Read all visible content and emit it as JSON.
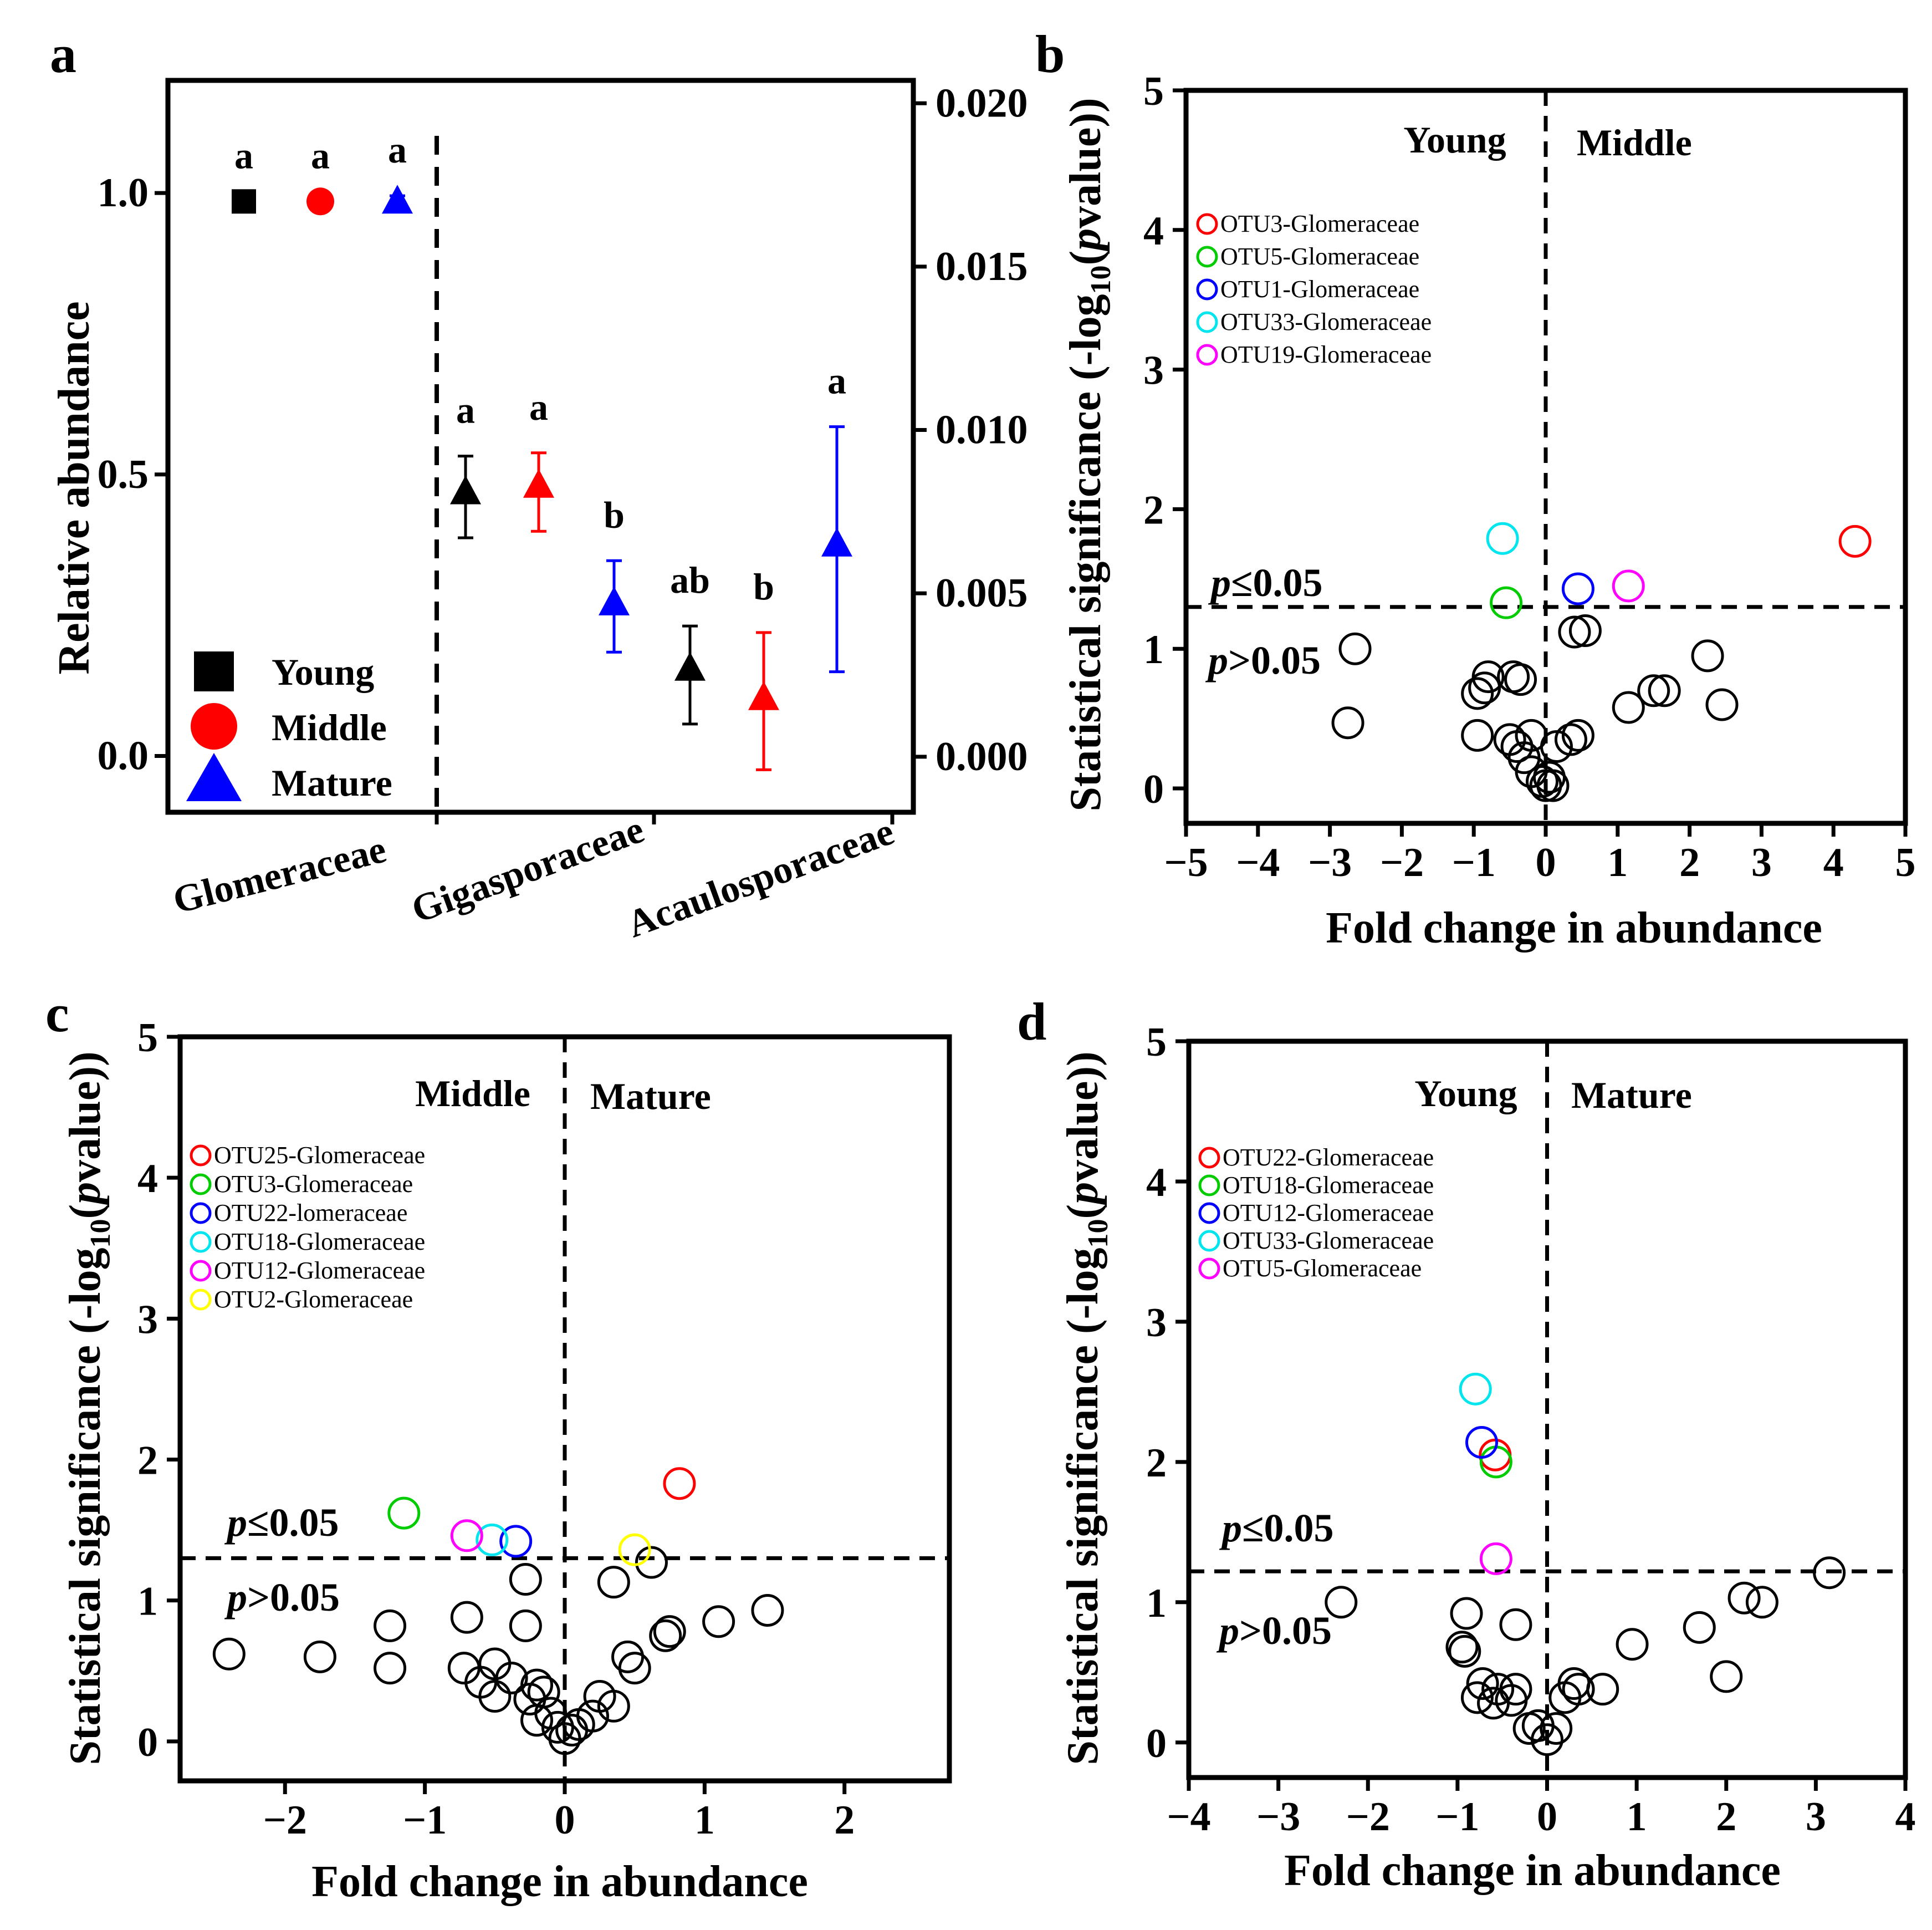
{
  "panel_labels": [
    "a",
    "b",
    "c",
    "d"
  ],
  "chart_data": [
    {
      "panel": "a",
      "type": "scatter",
      "ylabel": "Relative abundance",
      "left_axis": {
        "ylim": [
          -0.1,
          1.2
        ],
        "ticks": [
          "0.0",
          "0.5",
          "1.0"
        ],
        "tick_values": [
          0,
          0.5,
          1.0
        ]
      },
      "right_axis": {
        "ylim": [
          -0.0017,
          0.0207
        ],
        "ticks": [
          "0.000",
          "0.005",
          "0.010",
          "0.015",
          "0.020"
        ],
        "tick_values": [
          0,
          0.005,
          0.01,
          0.015,
          0.02
        ]
      },
      "categories": [
        "Glomeraceae",
        "Gigasporaceae",
        "Acaulosporaceae"
      ],
      "legend": [
        {
          "name": "Young",
          "color": "#000000",
          "marker": "square"
        },
        {
          "name": "Middle",
          "color": "#ff0000",
          "marker": "circle"
        },
        {
          "name": "Mature",
          "color": "#0000ff",
          "marker": "triangle"
        }
      ],
      "points": [
        {
          "category": "Glomeraceae",
          "group": "Young",
          "marker": "square",
          "color": "#000000",
          "axis": "left",
          "value": 0.985,
          "err_lo": 0.985,
          "err_hi": 0.985,
          "letter": "a"
        },
        {
          "category": "Glomeraceae",
          "group": "Middle",
          "marker": "circle",
          "color": "#ff0000",
          "axis": "left",
          "value": 0.985,
          "err_lo": 0.985,
          "err_hi": 0.985,
          "letter": "a"
        },
        {
          "category": "Glomeraceae",
          "group": "Mature",
          "marker": "triangle",
          "color": "#0000ff",
          "axis": "left",
          "value": 0.985,
          "err_lo": 0.97,
          "err_hi": 0.995,
          "letter": "a"
        },
        {
          "category": "Gigasporaceae",
          "group": "Young",
          "marker": "triangle",
          "color": "#000000",
          "axis": "right",
          "value": 0.0081,
          "err_lo": 0.0067,
          "err_hi": 0.0092,
          "letter": "a"
        },
        {
          "category": "Gigasporaceae",
          "group": "Middle",
          "marker": "triangle",
          "color": "#ff0000",
          "axis": "right",
          "value": 0.0083,
          "err_lo": 0.0069,
          "err_hi": 0.0093,
          "letter": "a"
        },
        {
          "category": "Gigasporaceae",
          "group": "Mature",
          "marker": "triangle",
          "color": "#0000ff",
          "axis": "right",
          "value": 0.0047,
          "err_lo": 0.0032,
          "err_hi": 0.006,
          "letter": "b"
        },
        {
          "category": "Acaulosporaceae",
          "group": "Young",
          "marker": "triangle",
          "color": "#000000",
          "axis": "right",
          "value": 0.0027,
          "err_lo": 0.001,
          "err_hi": 0.004,
          "letter": "ab"
        },
        {
          "category": "Acaulosporaceae",
          "group": "Middle",
          "marker": "triangle",
          "color": "#ff0000",
          "axis": "right",
          "value": 0.0018,
          "err_lo": -0.0004,
          "err_hi": 0.0038,
          "letter": "b"
        },
        {
          "category": "Acaulosporaceae",
          "group": "Mature",
          "marker": "triangle",
          "color": "#0000ff",
          "axis": "right",
          "value": 0.0065,
          "err_lo": 0.0026,
          "err_hi": 0.0101,
          "letter": "a"
        }
      ]
    },
    {
      "panel": "b",
      "type": "scatter",
      "xlabel": "Fold change in abundance",
      "ylabel_main": "Statistical significance (-log",
      "ylabel_sub": "10",
      "ylabel_mid": "(",
      "ylabel_italic": "p",
      "ylabel_end": "value))",
      "xlim": [
        -5,
        5
      ],
      "ylim": [
        -0.25,
        5
      ],
      "xticks": [
        -5,
        -4,
        -3,
        -2,
        -1,
        0,
        1,
        2,
        3,
        4,
        5
      ],
      "yticks": [
        0,
        1,
        2,
        3,
        4,
        5
      ],
      "groups": [
        "Young",
        "Middle"
      ],
      "threshold": 1.3,
      "sig_labels": [
        "p",
        "≤0.05",
        "p",
        ">0.05"
      ],
      "legend": [
        {
          "name": "OTU3-Glomeraceae",
          "color": "#ff0000"
        },
        {
          "name": "OTU5-Glomeraceae",
          "color": "#00cc00"
        },
        {
          "name": "OTU1-Glomeraceae",
          "color": "#0000ff"
        },
        {
          "name": "OTU33-Glomeraceae",
          "color": "#00e5ee"
        },
        {
          "name": "OTU19-Glomeraceae",
          "color": "#ff00ff"
        }
      ],
      "highlight": [
        {
          "x": 4.3,
          "y": 1.77,
          "color": "#ff0000"
        },
        {
          "x": -0.55,
          "y": 1.33,
          "color": "#00cc00"
        },
        {
          "x": 0.45,
          "y": 1.43,
          "color": "#0000ff"
        },
        {
          "x": -0.6,
          "y": 1.79,
          "color": "#00e5ee"
        },
        {
          "x": 1.15,
          "y": 1.45,
          "color": "#ff00ff"
        }
      ],
      "points": [
        [
          -2.65,
          1.0
        ],
        [
          -2.75,
          0.47
        ],
        [
          -0.95,
          0.68
        ],
        [
          -0.85,
          0.72
        ],
        [
          -0.8,
          0.8
        ],
        [
          -0.45,
          0.8
        ],
        [
          -0.35,
          0.78
        ],
        [
          -0.95,
          0.38
        ],
        [
          -0.5,
          0.35
        ],
        [
          -0.4,
          0.3
        ],
        [
          -0.2,
          0.38
        ],
        [
          -0.3,
          0.22
        ],
        [
          -0.2,
          0.12
        ],
        [
          -0.05,
          0.05
        ],
        [
          0.0,
          0.02
        ],
        [
          0.05,
          0.08
        ],
        [
          0.1,
          0.02
        ],
        [
          0.15,
          0.3
        ],
        [
          0.35,
          0.35
        ],
        [
          0.45,
          0.38
        ],
        [
          0.4,
          1.12
        ],
        [
          0.55,
          1.13
        ],
        [
          1.15,
          0.58
        ],
        [
          1.5,
          0.7
        ],
        [
          1.65,
          0.7
        ],
        [
          2.25,
          0.95
        ],
        [
          2.45,
          0.6
        ]
      ]
    },
    {
      "panel": "c",
      "type": "scatter",
      "xlabel": "Fold change in abundance",
      "ylabel_main": "Statistical significance (-log",
      "ylabel_sub": "10",
      "ylabel_mid": "(",
      "ylabel_italic": "p",
      "ylabel_end": "value))",
      "xlim": [
        -2.75,
        2.75
      ],
      "ylim": [
        -0.28,
        5
      ],
      "xticks": [
        -2,
        -1,
        0,
        1,
        2
      ],
      "yticks": [
        0,
        1,
        2,
        3,
        4,
        5
      ],
      "groups": [
        "Middle",
        "Mature"
      ],
      "threshold": 1.3,
      "sig_labels": [
        "p",
        "≤0.05",
        "p",
        ">0.05"
      ],
      "legend": [
        {
          "name": "OTU25-Glomeraceae",
          "color": "#ff0000"
        },
        {
          "name": "OTU3-Glomeraceae",
          "color": "#00cc00"
        },
        {
          "name": "OTU22-lomeraceae",
          "color": "#0000ff"
        },
        {
          "name": "OTU18-Glomeraceae",
          "color": "#00e5ee"
        },
        {
          "name": "OTU12-Glomeraceae",
          "color": "#ff00ff"
        },
        {
          "name": "OTU2-Glomeraceae",
          "color": "#ffff00"
        }
      ],
      "highlight": [
        {
          "x": 0.82,
          "y": 1.83,
          "color": "#ff0000"
        },
        {
          "x": -1.15,
          "y": 1.62,
          "color": "#00cc00"
        },
        {
          "x": -0.35,
          "y": 1.42,
          "color": "#0000ff"
        },
        {
          "x": -0.52,
          "y": 1.43,
          "color": "#00e5ee"
        },
        {
          "x": -0.7,
          "y": 1.46,
          "color": "#ff00ff"
        },
        {
          "x": 0.5,
          "y": 1.36,
          "color": "#ffff00"
        }
      ],
      "points": [
        [
          -2.4,
          0.62
        ],
        [
          -1.75,
          0.6
        ],
        [
          -1.25,
          0.82
        ],
        [
          -1.25,
          0.52
        ],
        [
          -0.7,
          0.88
        ],
        [
          -0.72,
          0.52
        ],
        [
          -0.6,
          0.42
        ],
        [
          -0.5,
          0.55
        ],
        [
          -0.5,
          0.32
        ],
        [
          -0.38,
          0.45
        ],
        [
          -0.28,
          0.82
        ],
        [
          -0.28,
          1.15
        ],
        [
          -0.25,
          0.3
        ],
        [
          -0.2,
          0.4
        ],
        [
          -0.15,
          0.35
        ],
        [
          -0.2,
          0.15
        ],
        [
          -0.1,
          0.2
        ],
        [
          -0.05,
          0.1
        ],
        [
          0.0,
          0.02
        ],
        [
          0.05,
          0.08
        ],
        [
          0.1,
          0.12
        ],
        [
          0.2,
          0.18
        ],
        [
          0.25,
          0.32
        ],
        [
          0.35,
          0.25
        ],
        [
          0.35,
          1.13
        ],
        [
          0.45,
          0.6
        ],
        [
          0.5,
          0.52
        ],
        [
          0.62,
          1.27
        ],
        [
          0.75,
          0.78
        ],
        [
          0.72,
          0.75
        ],
        [
          1.1,
          0.85
        ],
        [
          1.45,
          0.93
        ]
      ]
    },
    {
      "panel": "d",
      "type": "scatter",
      "xlabel": "Fold change in abundance",
      "ylabel_main": "Statistical significance (-log",
      "ylabel_sub": "10",
      "ylabel_mid": "(",
      "ylabel_italic": "p",
      "ylabel_end": "value))",
      "xlim": [
        -4,
        4
      ],
      "ylim": [
        -0.25,
        5
      ],
      "xticks": [
        -4,
        -3,
        -2,
        -1,
        0,
        1,
        2,
        3,
        4
      ],
      "yticks": [
        0,
        1,
        2,
        3,
        4,
        5
      ],
      "groups": [
        "Young",
        "Mature"
      ],
      "threshold": 1.22,
      "sig_labels": [
        "p",
        "≤0.05",
        "p",
        ">0.05"
      ],
      "legend": [
        {
          "name": "OTU22-Glomeraceae",
          "color": "#ff0000"
        },
        {
          "name": "OTU18-Glomeraceae",
          "color": "#00cc00"
        },
        {
          "name": "OTU12-Glomeraceae",
          "color": "#0000ff"
        },
        {
          "name": "OTU33-Glomeraceae",
          "color": "#00e5ee"
        },
        {
          "name": "OTU5-Glomeraceae",
          "color": "#ff00ff"
        }
      ],
      "highlight": [
        {
          "x": -0.58,
          "y": 2.05,
          "color": "#ff0000"
        },
        {
          "x": -0.57,
          "y": 2.0,
          "color": "#00cc00"
        },
        {
          "x": -0.73,
          "y": 2.14,
          "color": "#0000ff"
        },
        {
          "x": -0.8,
          "y": 2.52,
          "color": "#00e5ee"
        },
        {
          "x": -0.57,
          "y": 1.31,
          "color": "#ff00ff"
        }
      ],
      "points": [
        [
          -2.3,
          1.0
        ],
        [
          -0.9,
          0.92
        ],
        [
          -0.95,
          0.68
        ],
        [
          -0.92,
          0.65
        ],
        [
          -0.35,
          0.84
        ],
        [
          -0.72,
          0.42
        ],
        [
          -0.78,
          0.32
        ],
        [
          -0.55,
          0.38
        ],
        [
          -0.6,
          0.28
        ],
        [
          -0.4,
          0.3
        ],
        [
          -0.35,
          0.38
        ],
        [
          -0.2,
          0.1
        ],
        [
          -0.1,
          0.12
        ],
        [
          0.0,
          0.02
        ],
        [
          0.1,
          0.1
        ],
        [
          0.2,
          0.32
        ],
        [
          0.3,
          0.42
        ],
        [
          0.35,
          0.38
        ],
        [
          0.62,
          0.38
        ],
        [
          0.95,
          0.7
        ],
        [
          1.7,
          0.82
        ],
        [
          2.0,
          0.47
        ],
        [
          2.2,
          1.03
        ],
        [
          2.4,
          1.0
        ],
        [
          3.15,
          1.21
        ]
      ]
    }
  ]
}
